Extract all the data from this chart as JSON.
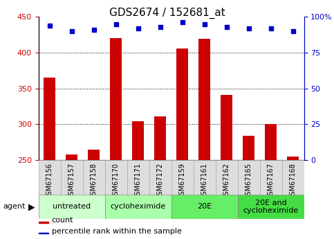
{
  "title": "GDS2674 / 152681_at",
  "samples": [
    "GSM67156",
    "GSM67157",
    "GSM67158",
    "GSM67170",
    "GSM67171",
    "GSM67172",
    "GSM67159",
    "GSM67161",
    "GSM67162",
    "GSM67165",
    "GSM67167",
    "GSM67168"
  ],
  "bar_values": [
    365,
    258,
    265,
    420,
    304,
    311,
    406,
    419,
    341,
    284,
    300,
    255
  ],
  "dot_values": [
    94,
    90,
    91,
    95,
    92,
    93,
    96,
    95,
    93,
    92,
    92,
    90
  ],
  "bar_color": "#cc0000",
  "dot_color": "#0000cc",
  "ylim_left": [
    250,
    450
  ],
  "ylim_right": [
    0,
    100
  ],
  "yticks_left": [
    250,
    300,
    350,
    400,
    450
  ],
  "yticks_right": [
    0,
    25,
    50,
    75,
    100
  ],
  "grid_values": [
    300,
    350,
    400
  ],
  "groups": [
    {
      "label": "untreated",
      "start": 0,
      "end": 3,
      "color": "#ccffcc"
    },
    {
      "label": "cycloheximide",
      "start": 3,
      "end": 6,
      "color": "#aaffaa"
    },
    {
      "label": "20E",
      "start": 6,
      "end": 9,
      "color": "#66ee66"
    },
    {
      "label": "20E and\ncycloheximide",
      "start": 9,
      "end": 12,
      "color": "#44dd44"
    }
  ],
  "agent_label": "agent",
  "legend_count_label": "count",
  "legend_pct_label": "percentile rank within the sample",
  "bar_width": 0.55,
  "bg_color": "#ffffff",
  "plot_bg_color": "#ffffff",
  "tick_label_color_left": "#cc0000",
  "tick_label_color_right": "#0000cc",
  "title_fontsize": 11,
  "axis_fontsize": 8,
  "group_label_fontsize": 8,
  "legend_fontsize": 8,
  "sample_label_fontsize": 7
}
